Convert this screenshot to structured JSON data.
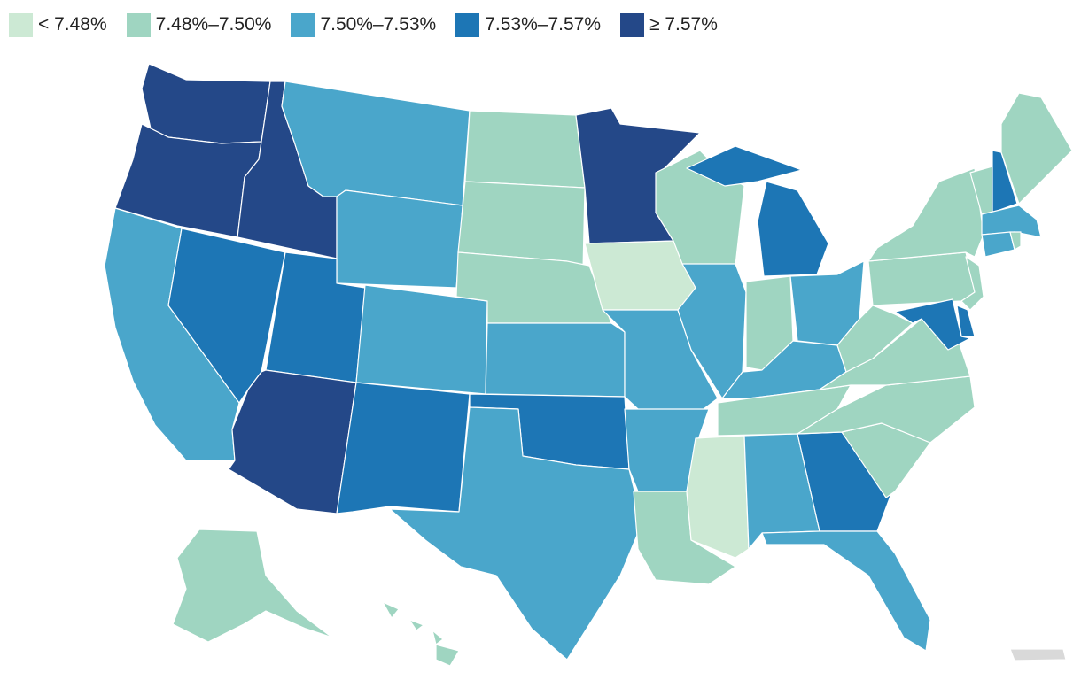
{
  "legend": [
    {
      "label": "< 7.48%",
      "color": "#cce9d4"
    },
    {
      "label": "7.48%–7.50%",
      "color": "#9fd5c1"
    },
    {
      "label": "7.50%–7.53%",
      "color": "#4aa6cb"
    },
    {
      "label": "7.53%–7.57%",
      "color": "#1d76b5"
    },
    {
      "label": "≥ 7.57%",
      "color": "#244888"
    }
  ],
  "no_data_color": "#d9d9d9",
  "states": {
    "WA": 4,
    "OR": 4,
    "ID": 4,
    "MN": 4,
    "AZ": 4,
    "NV": 3,
    "UT": 3,
    "NM": 3,
    "OK": 3,
    "MI": 3,
    "GA": 3,
    "NH": 3,
    "MD": 3,
    "DE": 3,
    "CA": 2,
    "MT": 2,
    "WY": 2,
    "CO": 2,
    "KS": 2,
    "TX": 2,
    "MO": 2,
    "AR": 2,
    "IL": 2,
    "KY": 2,
    "OH": 2,
    "AL": 2,
    "FL": 2,
    "MA": 2,
    "CT": 2,
    "ND": 1,
    "SD": 1,
    "NE": 1,
    "WI": 1,
    "IN": 1,
    "TN": 1,
    "LA": 1,
    "NC": 1,
    "SC": 1,
    "VA": 1,
    "WV": 1,
    "PA": 1,
    "NY": 1,
    "NJ": 1,
    "VT": 1,
    "ME": 1,
    "RI": 1,
    "AK": 1,
    "HI": 1,
    "IA": 0,
    "MS": 0,
    "PR": -1
  }
}
